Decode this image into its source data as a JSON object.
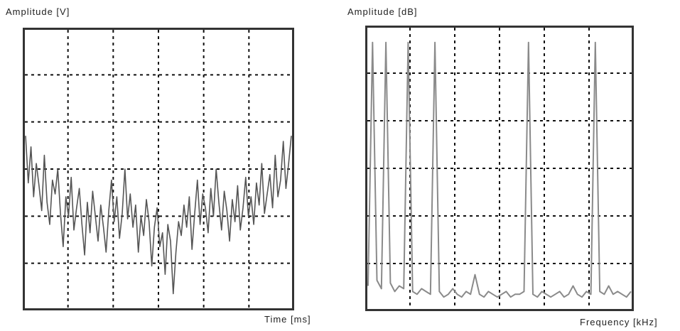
{
  "chart_data": [
    {
      "type": "line",
      "title": "",
      "xlabel": "Time [ms]",
      "ylabel": "Amplitude [V]",
      "grid": true,
      "x_divisions": 6,
      "y_divisions": 6,
      "series": [
        {
          "values": [
            0.62,
            0.45,
            0.58,
            0.4,
            0.52,
            0.44,
            0.35,
            0.55,
            0.38,
            0.3,
            0.46,
            0.41,
            0.5,
            0.34,
            0.22,
            0.4,
            0.33,
            0.47,
            0.28,
            0.36,
            0.43,
            0.3,
            0.19,
            0.38,
            0.27,
            0.42,
            0.33,
            0.24,
            0.37,
            0.29,
            0.2,
            0.35,
            0.46,
            0.31,
            0.4,
            0.25,
            0.34,
            0.5,
            0.32,
            0.41,
            0.29,
            0.37,
            0.2,
            0.33,
            0.26,
            0.39,
            0.31,
            0.15,
            0.29,
            0.36,
            0.22,
            0.27,
            0.12,
            0.3,
            0.24,
            0.05,
            0.2,
            0.31,
            0.26,
            0.37,
            0.29,
            0.4,
            0.21,
            0.34,
            0.46,
            0.3,
            0.41,
            0.36,
            0.27,
            0.43,
            0.33,
            0.5,
            0.38,
            0.28,
            0.42,
            0.35,
            0.24,
            0.39,
            0.31,
            0.44,
            0.28,
            0.36,
            0.47,
            0.33,
            0.4,
            0.3,
            0.45,
            0.37,
            0.52,
            0.34,
            0.41,
            0.48,
            0.36,
            0.55,
            0.4,
            0.46,
            0.6,
            0.43,
            0.52,
            0.62
          ]
        }
      ]
    },
    {
      "type": "line",
      "title": "",
      "xlabel": "Frequency [kHz]",
      "ylabel": "Amplitude [dB]",
      "grid": true,
      "x_divisions": 6,
      "y_divisions": 6,
      "series": [
        {
          "values": [
            0.08,
            0.95,
            0.1,
            0.07,
            0.95,
            0.09,
            0.06,
            0.08,
            0.07,
            0.95,
            0.06,
            0.05,
            0.07,
            0.06,
            0.05,
            0.95,
            0.06,
            0.04,
            0.05,
            0.07,
            0.05,
            0.04,
            0.06,
            0.05,
            0.12,
            0.05,
            0.04,
            0.06,
            0.05,
            0.04,
            0.05,
            0.06,
            0.04,
            0.05,
            0.05,
            0.06,
            0.95,
            0.05,
            0.04,
            0.06,
            0.05,
            0.04,
            0.05,
            0.06,
            0.04,
            0.05,
            0.08,
            0.05,
            0.04,
            0.06,
            0.05,
            0.95,
            0.06,
            0.05,
            0.08,
            0.05,
            0.06,
            0.05,
            0.04,
            0.06
          ]
        }
      ]
    }
  ],
  "labels": {
    "left_ylabel": "Amplitude [V]",
    "left_xlabel": "Time [ms]",
    "right_ylabel": "Amplitude [dB]",
    "right_xlabel": "Frequency [kHz]"
  }
}
